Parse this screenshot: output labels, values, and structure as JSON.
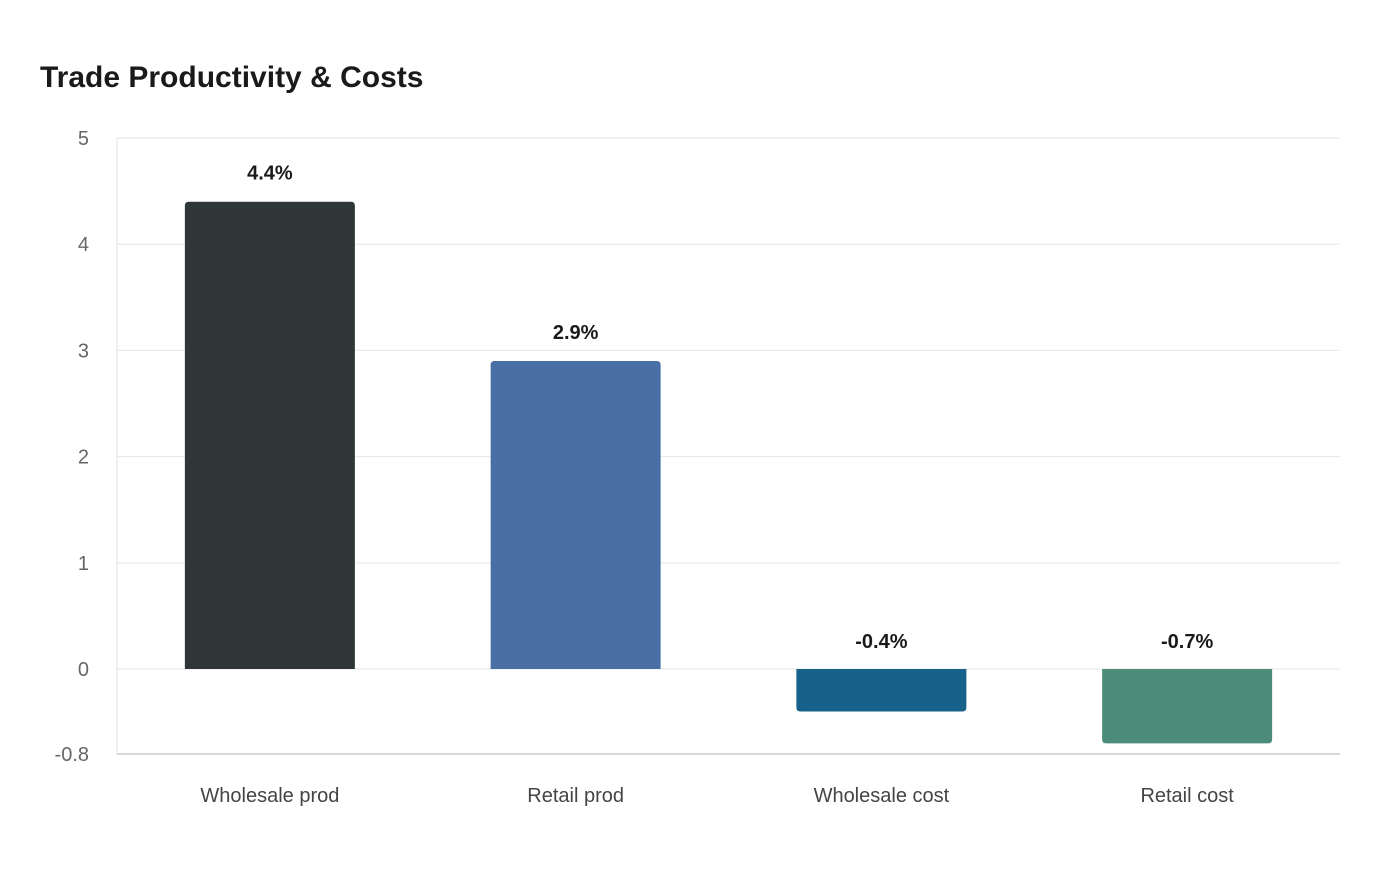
{
  "chart_data": {
    "type": "bar",
    "title": "Trade Productivity & Costs",
    "xlabel": "",
    "ylabel": "",
    "categories": [
      "Wholesale prod",
      "Retail prod",
      "Wholesale cost",
      "Retail cost"
    ],
    "values": [
      4.4,
      2.9,
      -0.4,
      -0.7
    ],
    "data_labels": [
      "4.4%",
      "2.9%",
      "-0.4%",
      "-0.7%"
    ],
    "bar_colors": [
      "#2e3638",
      "#4a6fa5",
      "#17628a",
      "#4e8c7a"
    ],
    "ylim": [
      -0.8,
      5
    ],
    "yticks": [
      5,
      4,
      3,
      2,
      1,
      0,
      -0.8
    ],
    "ytick_labels": [
      "5",
      "4",
      "3",
      "2",
      "1",
      "0",
      "-0.8"
    ],
    "grid": true,
    "legend": "none"
  }
}
